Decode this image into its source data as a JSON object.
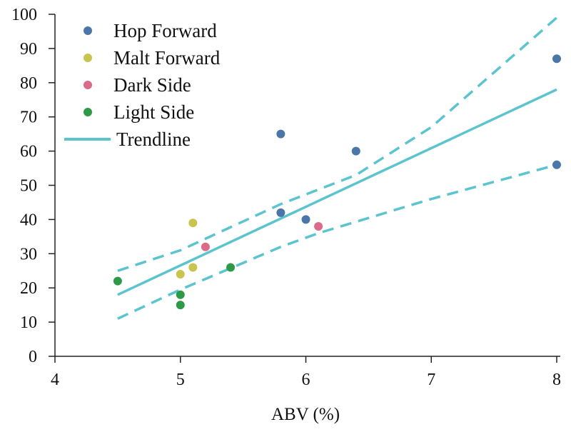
{
  "chart_data": {
    "type": "scatter",
    "title": "",
    "xlabel": "ABV (%)",
    "ylabel": "",
    "xlim": [
      4,
      8
    ],
    "ylim": [
      0,
      100
    ],
    "xticks": [
      4,
      5,
      6,
      7,
      8
    ],
    "yticks": [
      0,
      10,
      20,
      30,
      40,
      50,
      60,
      70,
      80,
      90,
      100
    ],
    "grid": false,
    "legend_position": "top-left",
    "series": [
      {
        "name": "Hop Forward",
        "color": "#4a77a8",
        "points": [
          [
            5.8,
            65
          ],
          [
            6.4,
            60
          ],
          [
            5.8,
            42
          ],
          [
            6.0,
            40
          ],
          [
            8.0,
            87
          ],
          [
            8.0,
            56
          ]
        ]
      },
      {
        "name": "Malt Forward",
        "color": "#c9c44e",
        "points": [
          [
            5.1,
            39
          ],
          [
            5.1,
            26
          ],
          [
            5.0,
            24
          ]
        ]
      },
      {
        "name": "Dark Side",
        "color": "#dc6a8a",
        "points": [
          [
            5.2,
            32
          ],
          [
            6.1,
            38
          ]
        ]
      },
      {
        "name": "Light Side",
        "color": "#2e9a48",
        "points": [
          [
            4.5,
            22
          ],
          [
            5.0,
            18
          ],
          [
            5.0,
            15
          ],
          [
            5.4,
            26
          ]
        ]
      }
    ],
    "trendline": {
      "name": "Trendline",
      "color": "#5cc4cf",
      "points": [
        [
          4.5,
          18
        ],
        [
          8.0,
          78
        ]
      ]
    },
    "confidence_upper": [
      [
        4.5,
        25
      ],
      [
        5.0,
        31
      ],
      [
        5.8,
        44.5
      ],
      [
        6.4,
        53
      ],
      [
        7.0,
        67
      ],
      [
        8.0,
        99
      ]
    ],
    "confidence_lower": [
      [
        4.5,
        11
      ],
      [
        5.0,
        19.5
      ],
      [
        5.8,
        32
      ],
      [
        6.1,
        36
      ],
      [
        7.0,
        46
      ],
      [
        8.0,
        56
      ]
    ]
  }
}
